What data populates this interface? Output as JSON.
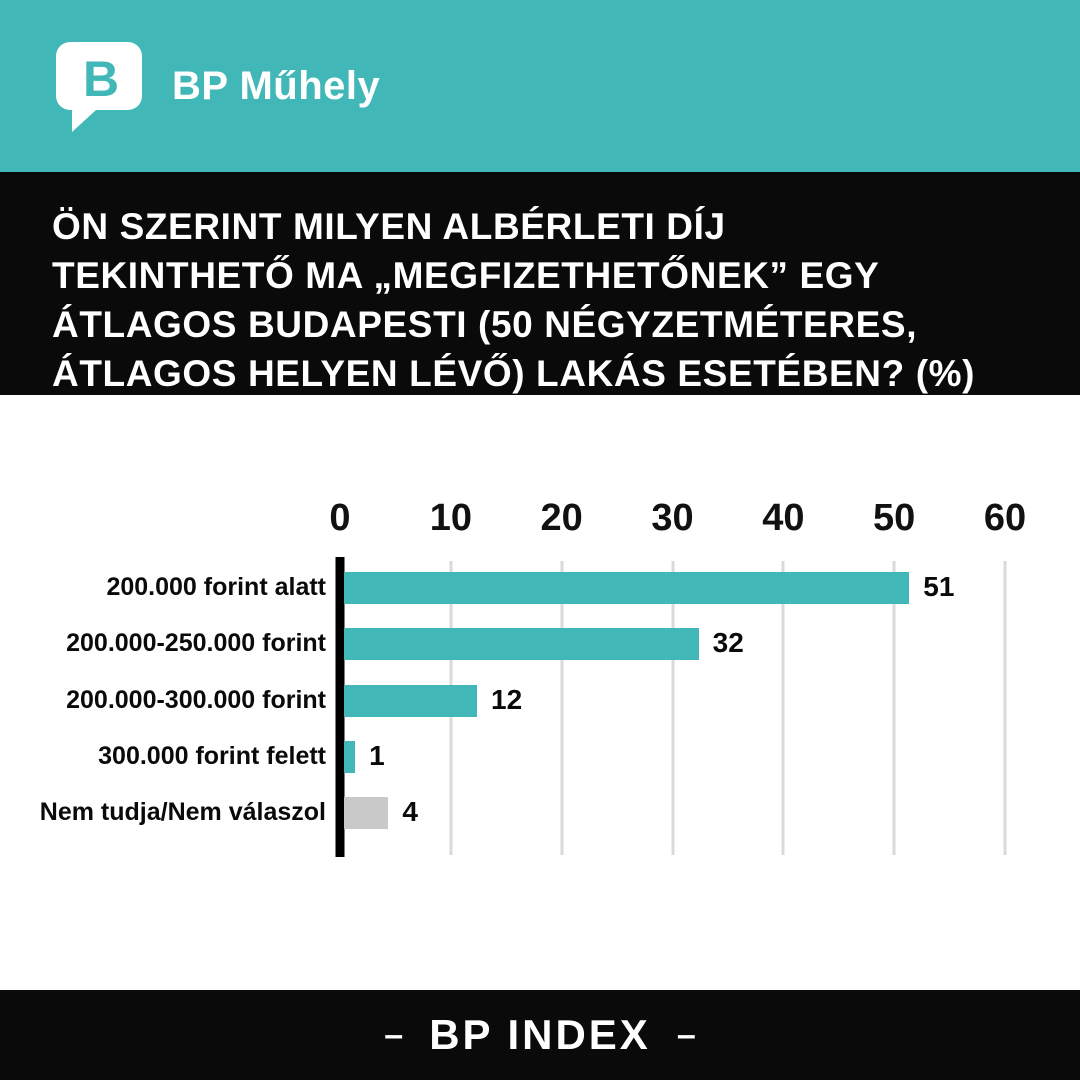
{
  "header": {
    "brand": "BP Műhely",
    "accent_color": "#41b7b8"
  },
  "question": {
    "lines": [
      "ÖN SZERINT MILYEN ALBÉRLETI DÍJ",
      "TEKINTHETŐ MA „MEGFIZETHETŐNEK” EGY",
      "ÁTLAGOS BUDAPESTI (50 NÉGYZETMÉTERES,",
      "ÁTLAGOS HELYEN LÉVŐ) LAKÁS ESETÉBEN? (%)"
    ]
  },
  "chart_data": {
    "type": "bar",
    "orientation": "horizontal",
    "title": "ÖN SZERINT MILYEN ALBÉRLETI DÍJ TEKINTHETŐ MA „MEGFIZETHETŐNEK” EGY ÁTLAGOS BUDAPESTI (50 NÉGYZETMÉTERES, ÁTLAGOS HELYEN LÉVŐ) LAKÁS ESETÉBEN? (%)",
    "categories": [
      "200.000 forint alatt",
      "200.000-250.000 forint",
      "200.000-300.000 forint",
      "300.000 forint felett",
      "Nem tudja/Nem válaszol"
    ],
    "values": [
      51,
      32,
      12,
      1,
      4
    ],
    "bar_colors": [
      "#41b7b8",
      "#41b7b8",
      "#41b7b8",
      "#41b7b8",
      "#c9c9c9"
    ],
    "xlim": [
      0,
      60
    ],
    "xticks": [
      0,
      10,
      20,
      30,
      40,
      50,
      60
    ],
    "grid": true,
    "value_labels": true,
    "xlabel": "",
    "ylabel": ""
  },
  "footer": {
    "label": "BP INDEX",
    "left_mark": "–",
    "right_mark": "–"
  }
}
